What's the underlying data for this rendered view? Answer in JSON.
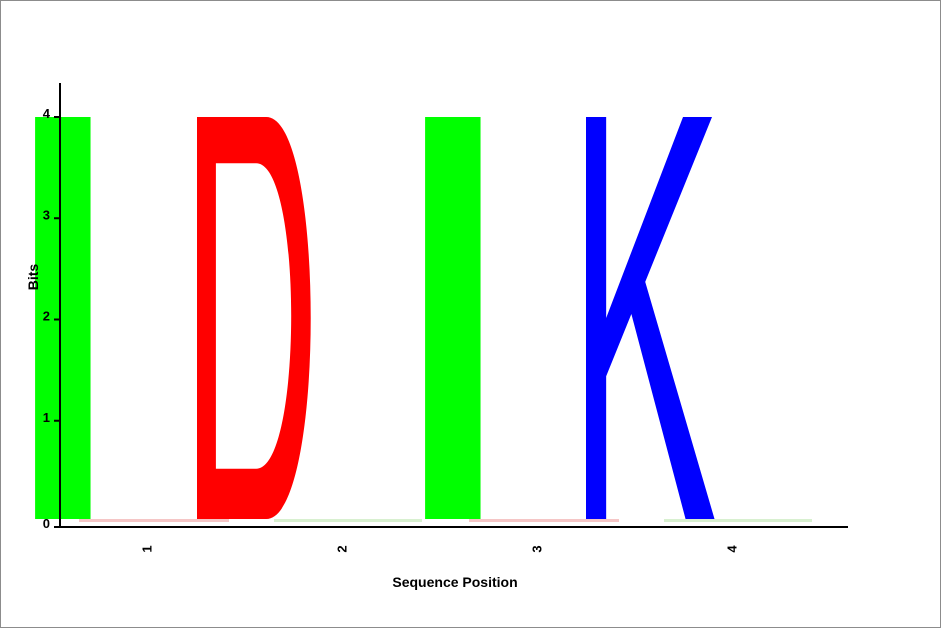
{
  "chart_data": {
    "type": "sequence-logo",
    "xlabel": "Sequence Position",
    "ylabel": "Bits",
    "ylim": [
      0,
      4
    ],
    "yticks": [
      "0",
      "1",
      "2",
      "3",
      "4"
    ],
    "positions": [
      "1",
      "2",
      "3",
      "4"
    ],
    "series": [
      {
        "position": "1",
        "letter": "I",
        "bits": 4.0,
        "color": "#00ff00"
      },
      {
        "position": "2",
        "letter": "D",
        "bits": 4.0,
        "color": "#ff0000"
      },
      {
        "position": "3",
        "letter": "I",
        "bits": 4.0,
        "color": "#00ff00"
      },
      {
        "position": "4",
        "letter": "K",
        "bits": 4.0,
        "color": "#0000ff"
      }
    ]
  }
}
